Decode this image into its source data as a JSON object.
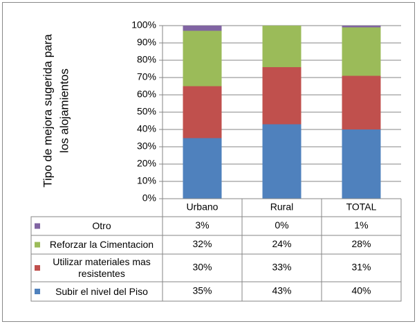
{
  "chart_data": {
    "type": "stacked_bar_percent",
    "y_label": [
      "Tipo de mejora sugerida para",
      "los alojamientos"
    ],
    "categories": [
      "Urbano",
      "Rural",
      "TOTAL"
    ],
    "series": [
      {
        "name": "Subir el nivel del Piso",
        "color": "#4f81bd",
        "values": [
          35,
          43,
          40
        ],
        "value_labels": [
          "35%",
          "43%",
          "40%"
        ]
      },
      {
        "name": "Utilizar materiales mas resistentes",
        "color": "#c0504d",
        "values": [
          30,
          33,
          31
        ],
        "value_labels": [
          "30%",
          "33%",
          "31%"
        ]
      },
      {
        "name": "Reforzar la Cimentacion",
        "color": "#9bbb59",
        "values": [
          32,
          24,
          28
        ],
        "value_labels": [
          "32%",
          "24%",
          "28%"
        ]
      },
      {
        "name": "Otro",
        "color": "#8064a2",
        "values": [
          3,
          0,
          1
        ],
        "value_labels": [
          "3%",
          "0%",
          "1%"
        ]
      }
    ],
    "ylim": [
      0,
      100
    ],
    "yticks": [
      {
        "value": 0,
        "label": "0%"
      },
      {
        "value": 10,
        "label": "10%"
      },
      {
        "value": 20,
        "label": "20%"
      },
      {
        "value": 30,
        "label": "30%"
      },
      {
        "value": 40,
        "label": "40%"
      },
      {
        "value": 50,
        "label": "50%"
      },
      {
        "value": 60,
        "label": "60%"
      },
      {
        "value": 70,
        "label": "70%"
      },
      {
        "value": 80,
        "label": "80%"
      },
      {
        "value": 90,
        "label": "90%"
      },
      {
        "value": 100,
        "label": "100%"
      }
    ],
    "grid": true,
    "data_table": true
  }
}
